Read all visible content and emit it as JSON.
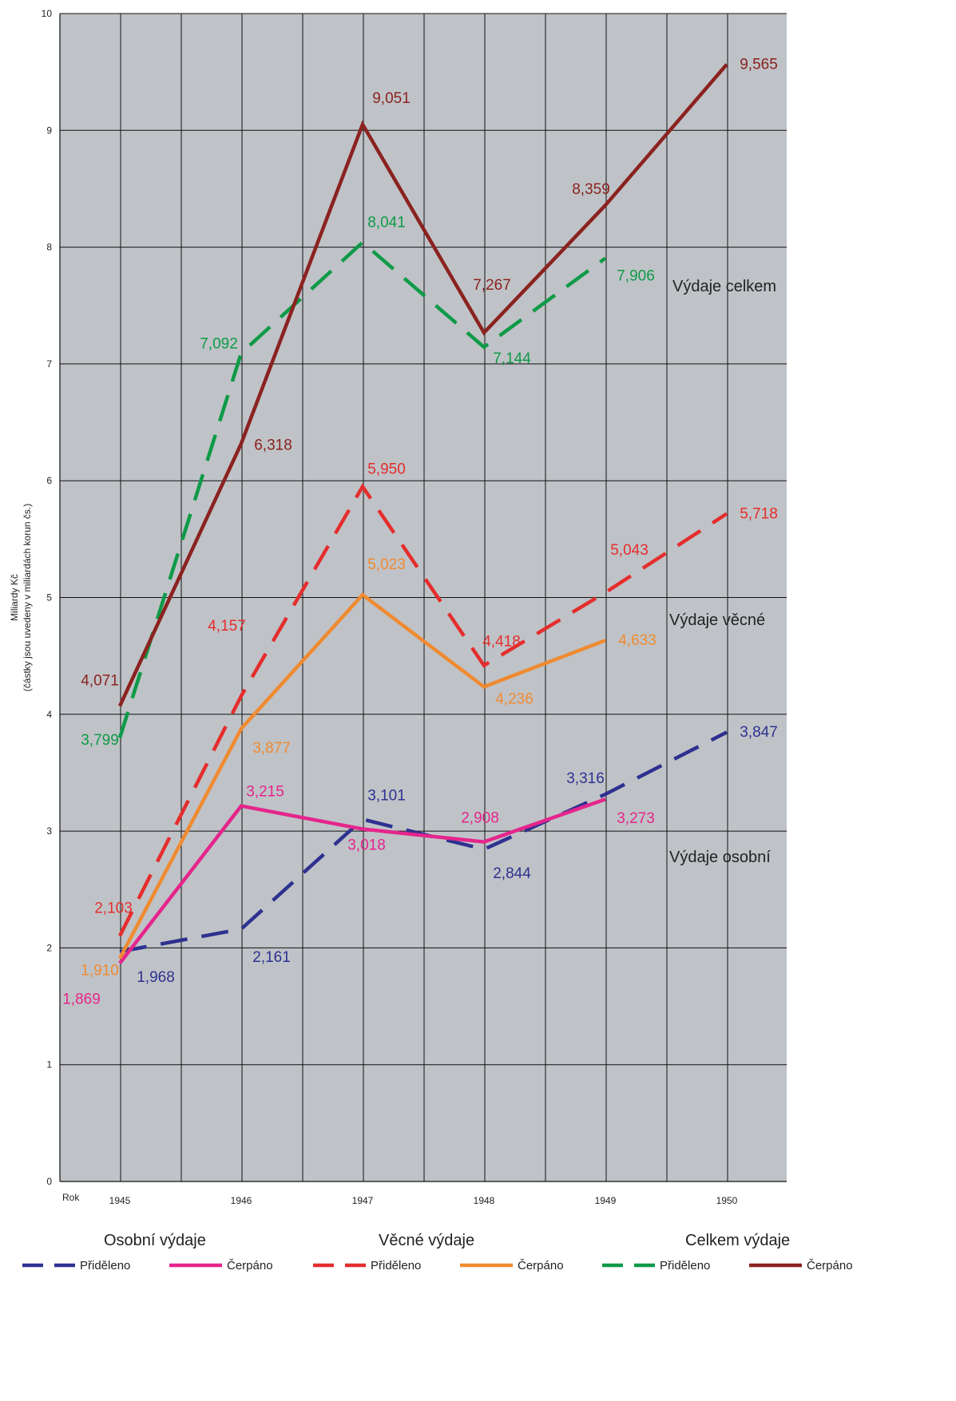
{
  "chart_data": {
    "type": "line",
    "ylabel": "Miliardy Kč",
    "ylabel_note": "(částky jsou uvedeny v miliardách korun čs.)",
    "xlabel": "Rok",
    "ylim": [
      0,
      10
    ],
    "yticks": [
      "0",
      "1",
      "2",
      "3",
      "4",
      "5",
      "6",
      "7",
      "8",
      "9",
      "10"
    ],
    "x": [
      "1945",
      "1946",
      "1947",
      "1948",
      "1949",
      "1950"
    ],
    "grid": true,
    "background": "#bfc3c7",
    "series": [
      {
        "name": "Přiděleno",
        "group": "Osobní výdaje",
        "style": "dashed",
        "color": "#2e3190",
        "values": [
          1.968,
          2.161,
          3.101,
          2.844,
          3.316,
          3.847
        ],
        "labels": [
          "1,968",
          "2,161",
          "3,101",
          "2,844",
          "3,316",
          "3,847"
        ]
      },
      {
        "name": "Čerpáno",
        "group": "Osobní výdaje",
        "style": "solid",
        "color": "#e5258c",
        "values": [
          1.869,
          3.215,
          3.018,
          2.908,
          3.273,
          null
        ],
        "labels": [
          "1,869",
          "3,215",
          "3,018",
          "2,908",
          "3,273",
          null
        ]
      },
      {
        "name": "Přiděleno",
        "group": "Věcné výdaje",
        "style": "dashed",
        "color": "#e52d2d",
        "values": [
          2.103,
          4.157,
          5.95,
          4.418,
          5.043,
          5.718
        ],
        "labels": [
          "2,103",
          "4,157",
          "5,950",
          "4,418",
          "5,043",
          "5,718"
        ]
      },
      {
        "name": "Čerpáno",
        "group": "Věcné výdaje",
        "style": "solid",
        "color": "#f08a31",
        "values": [
          1.91,
          3.877,
          5.023,
          4.236,
          4.633,
          null
        ],
        "labels": [
          "1,910",
          "3,877",
          "5,023",
          "4,236",
          "4,633",
          null
        ]
      },
      {
        "name": "Přiděleno",
        "group": "Celkem výdaje",
        "style": "dashed",
        "color": "#0f9a48",
        "values": [
          3.799,
          7.092,
          8.041,
          7.144,
          7.906,
          null
        ],
        "labels": [
          "3,799",
          "7,092",
          "8,041",
          "7,144",
          "7,906",
          null
        ]
      },
      {
        "name": "Čerpáno",
        "group": "Celkem výdaje",
        "style": "solid",
        "color": "#8b2220",
        "values": [
          4.071,
          6.318,
          9.051,
          7.267,
          8.359,
          9.565
        ],
        "labels": [
          "4,071",
          "6,318",
          "9,051",
          "7,267",
          "8,359",
          "9,565"
        ]
      }
    ],
    "annotations": [
      "Výdaje celkem",
      "Výdaje věcné",
      "Výdaje osobní"
    ],
    "legend_groups": [
      "Osobní výdaje",
      "Věcné výdaje",
      "Celkem výdaje"
    ],
    "legend_placement": "bottom"
  }
}
